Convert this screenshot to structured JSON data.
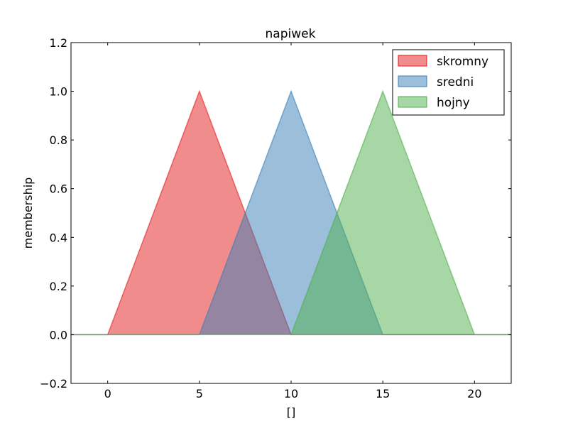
{
  "chart_data": {
    "type": "area",
    "title": "napiwek",
    "xlabel": "[]",
    "ylabel": "membership",
    "xlim": [
      -2,
      22
    ],
    "ylim": [
      -0.2,
      1.2
    ],
    "x_ticks": [
      0,
      5,
      10,
      15,
      20
    ],
    "x_tick_labels": [
      "0",
      "5",
      "10",
      "15",
      "20"
    ],
    "y_ticks": [
      -0.2,
      0.0,
      0.2,
      0.4,
      0.6,
      0.8,
      1.0,
      1.2
    ],
    "y_tick_labels": [
      "−0.2",
      "0.0",
      "0.2",
      "0.4",
      "0.6",
      "0.8",
      "1.0",
      "1.2"
    ],
    "grid": false,
    "legend_position": "top-right",
    "series": [
      {
        "name": "skromny",
        "fill": "#e41a1c",
        "stroke": "#e41a1c",
        "x": [
          -2,
          0,
          5,
          10,
          22
        ],
        "y": [
          0,
          0,
          1,
          0,
          0
        ]
      },
      {
        "name": "sredni",
        "fill": "#377eb8",
        "stroke": "#377eb8",
        "x": [
          -2,
          5,
          10,
          15,
          22
        ],
        "y": [
          0,
          0,
          1,
          0,
          0
        ]
      },
      {
        "name": "hojny",
        "fill": "#4daf4a",
        "stroke": "#4daf4a",
        "x": [
          -2,
          10,
          15,
          20,
          22
        ],
        "y": [
          0,
          0,
          1,
          0,
          0
        ]
      }
    ]
  }
}
